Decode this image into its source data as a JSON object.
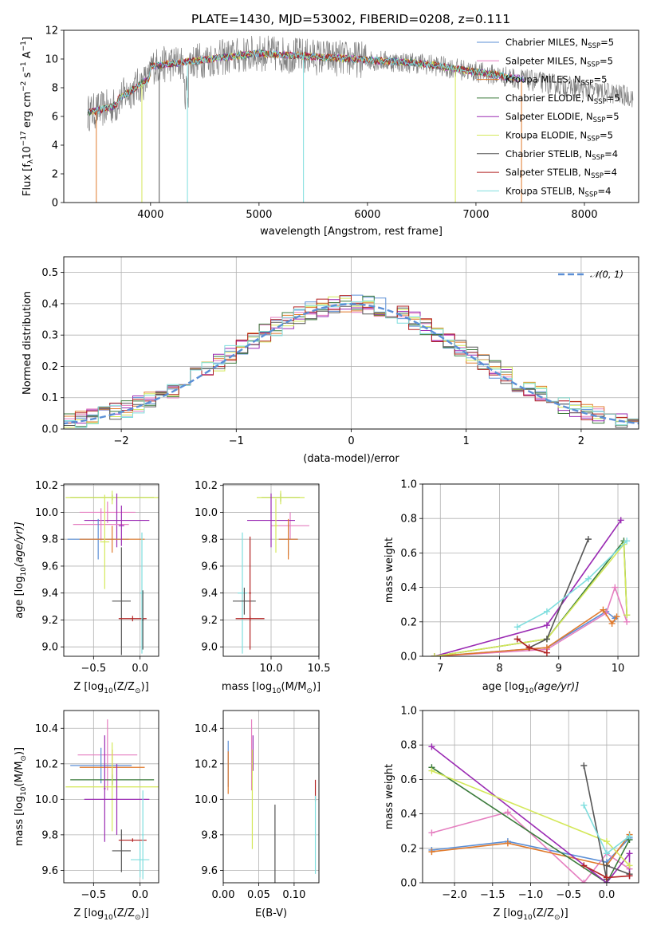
{
  "figure_title": "PLATE=1430, MJD=53002, FIBERID=0208, z=0.111",
  "colors": {
    "chabrier_miles": "#5b8fd6",
    "salpeter_miles": "#e57fc0",
    "kroupa_miles": "#e07a2c",
    "chabrier_elodie": "#3a7a3a",
    "salpeter_elodie": "#9a2ab3",
    "kroupa_elodie": "#d4e85a",
    "chabrier_stelib": "#555555",
    "salpeter_stelib": "#b22222",
    "kroupa_stelib": "#7fdede"
  },
  "chart_data": [
    {
      "id": "spectrum",
      "type": "line",
      "title": "PLATE=1430, MJD=53002, FIBERID=0208, z=0.111",
      "xlabel": "wavelength [Angstrom, rest frame]",
      "ylabel": "Flux [f",
      "xlim": [
        3200,
        8500
      ],
      "ylim": [
        0,
        12
      ],
      "xticks": [
        4000,
        5000,
        6000,
        7000,
        8000
      ],
      "yticks": [
        0,
        2,
        4,
        6,
        8,
        10,
        12
      ],
      "grid": false,
      "legend": "right",
      "series": [
        {
          "name": "Chabrier MILES, N",
          "nssp": "=5",
          "color": "#5b8fd6"
        },
        {
          "name": "Salpeter MILES, N",
          "nssp": "=5",
          "color": "#e57fc0"
        },
        {
          "name": "Kroupa MILES, N",
          "nssp": "=5",
          "color": "#e07a2c"
        },
        {
          "name": "Chabrier ELODIE, N",
          "nssp": "=5",
          "color": "#3a7a3a"
        },
        {
          "name": "Salpeter ELODIE, N",
          "nssp": "=5",
          "color": "#9a2ab3"
        },
        {
          "name": "Kroupa ELODIE, N",
          "nssp": "=5",
          "color": "#d4e85a"
        },
        {
          "name": "Chabrier STELIB, N",
          "nssp": "=4",
          "color": "#555555"
        },
        {
          "name": "Salpeter STELIB, N",
          "nssp": "=4",
          "color": "#b22222"
        },
        {
          "name": "Kroupa STELIB, N",
          "nssp": "=4",
          "color": "#7fdede"
        }
      ]
    },
    {
      "id": "residuals",
      "type": "line",
      "xlabel": "(data-model)/error",
      "ylabel": "Normed distribution",
      "xlim": [
        -2.5,
        2.5
      ],
      "ylim": [
        0,
        0.55
      ],
      "xticks": [
        -2,
        -1,
        0,
        1,
        2
      ],
      "xtick_labels": [
        "−2",
        "−1",
        "0",
        "1",
        "2"
      ],
      "yticks": [
        0.0,
        0.1,
        0.2,
        0.3,
        0.4,
        0.5
      ],
      "ytick_labels": [
        "0.0",
        "0.1",
        "0.2",
        "0.3",
        "0.4",
        "0.5"
      ],
      "grid": true,
      "legend": "top-right",
      "legend_label": "𝒩(0, 1)",
      "gaussian": {
        "mu": 0,
        "sigma": 1
      }
    },
    {
      "id": "age_vs_z",
      "type": "scatter",
      "xlabel": "Z [log",
      "ylabel": "age  [log",
      "xlim": [
        -0.82,
        0.2
      ],
      "ylim": [
        8.93,
        10.21
      ],
      "xticks": [
        -0.5,
        0.0
      ],
      "xtick_labels": [
        "−0.5",
        "0.0"
      ],
      "yticks": [
        9.0,
        9.2,
        9.4,
        9.6,
        9.8,
        10.0,
        10.2
      ],
      "ytick_labels": [
        "9.0",
        "9.2",
        "9.4",
        "9.6",
        "9.8",
        "10.0",
        "10.2"
      ],
      "grid": true,
      "points": [
        {
          "key": "chabrier_elodie",
          "x": -0.3,
          "y": 10.11,
          "xe": 0.45,
          "ye": 0.02
        },
        {
          "key": "kroupa_elodie",
          "x": -0.3,
          "y": 10.11,
          "xe": 0.5,
          "ye": 0.05
        },
        {
          "key": "salpeter_miles",
          "x": -0.35,
          "y": 10.0,
          "xe": 0.3,
          "ye": 0.08
        },
        {
          "key": "salpeter_elodie",
          "x": -0.25,
          "y": 9.94,
          "xe": 0.35,
          "ye": 0.2
        },
        {
          "key": "salpeter_miles",
          "x": -0.42,
          "y": 9.91,
          "xe": 0.3,
          "ye": 0.12
        },
        {
          "key": "chabrier_miles",
          "x": -0.45,
          "y": 9.8,
          "xe": 0.33,
          "ye": 0.15
        },
        {
          "key": "kroupa_miles",
          "x": -0.3,
          "y": 9.8,
          "xe": 0.35,
          "ye": 0.1
        },
        {
          "key": "kroupa_elodie",
          "x": -0.38,
          "y": 9.78,
          "xe": 0.05,
          "ye": 0.35
        },
        {
          "key": "salpeter_elodie",
          "x": -0.2,
          "y": 9.9,
          "xe": 0.03,
          "ye": 0.15
        },
        {
          "key": "chabrier_stelib",
          "x": -0.2,
          "y": 9.34,
          "xe": 0.1,
          "ye": 0.4
        },
        {
          "key": "salpeter_stelib",
          "x": -0.08,
          "y": 9.21,
          "xe": 0.15,
          "ye": 0.02
        },
        {
          "key": "kroupa_stelib",
          "x": 0.02,
          "y": 9.4,
          "xe": 0.02,
          "ye": 0.45
        },
        {
          "key": "chabrier_stelib",
          "x": 0.03,
          "y": 9.2,
          "xe": 0.01,
          "ye": 0.22
        }
      ]
    },
    {
      "id": "age_vs_mass",
      "type": "scatter",
      "xlabel": "mass [log",
      "ylabel": "",
      "xlim": [
        9.5,
        10.5
      ],
      "ylim": [
        8.93,
        10.21
      ],
      "xticks": [
        10.0,
        10.5
      ],
      "xtick_labels": [
        "10.0",
        "10.5"
      ],
      "yticks": [
        9.0,
        9.2,
        9.4,
        9.6,
        9.8,
        10.0,
        10.2
      ],
      "ytick_labels": [
        "9.0",
        "9.2",
        "9.4",
        "9.6",
        "9.8",
        "10.0",
        "10.2"
      ],
      "grid": true,
      "points": [
        {
          "key": "chabrier_elodie",
          "x": 10.1,
          "y": 10.11,
          "xe": 0.2,
          "ye": 0.03
        },
        {
          "key": "kroupa_elodie",
          "x": 10.1,
          "y": 10.11,
          "xe": 0.25,
          "ye": 0.05
        },
        {
          "key": "salpeter_miles",
          "x": 10.2,
          "y": 9.9,
          "xe": 0.2,
          "ye": 0.1
        },
        {
          "key": "salpeter_elodie",
          "x": 10.0,
          "y": 9.94,
          "xe": 0.25,
          "ye": 0.2
        },
        {
          "key": "chabrier_miles",
          "x": 10.18,
          "y": 9.8,
          "xe": 0.1,
          "ye": 0.12
        },
        {
          "key": "kroupa_miles",
          "x": 10.18,
          "y": 9.8,
          "xe": 0.1,
          "ye": 0.15
        },
        {
          "key": "kroupa_elodie",
          "x": 10.05,
          "y": 9.9,
          "xe": 0.02,
          "ye": 0.2
        },
        {
          "key": "kroupa_stelib",
          "x": 9.7,
          "y": 9.4,
          "xe": 0.05,
          "ye": 0.45
        },
        {
          "key": "chabrier_stelib",
          "x": 9.72,
          "y": 9.34,
          "xe": 0.12,
          "ye": 0.1
        },
        {
          "key": "salpeter_stelib",
          "x": 9.78,
          "y": 9.21,
          "xe": 0.15,
          "ye": 0.02
        },
        {
          "key": "salpeter_stelib",
          "x": 9.78,
          "y": 9.4,
          "xe": 0.01,
          "ye": 0.42
        }
      ]
    },
    {
      "id": "weight_vs_age",
      "type": "line",
      "xlabel": "age  [log",
      "ylabel": "mass weight",
      "xlim": [
        6.7,
        10.35
      ],
      "ylim": [
        0,
        1.0
      ],
      "xticks": [
        7,
        8,
        9,
        10
      ],
      "xtick_labels": [
        "7",
        "8",
        "9",
        "10"
      ],
      "yticks": [
        0.0,
        0.2,
        0.4,
        0.6,
        0.8,
        1.0
      ],
      "ytick_labels": [
        "0.0",
        "0.2",
        "0.4",
        "0.6",
        "0.8",
        "1.0"
      ],
      "grid": true,
      "series": [
        {
          "key": "chabrier_miles",
          "x": [
            6.9,
            8.8,
            9.8,
            9.95
          ],
          "y": [
            0.0,
            0.05,
            0.26,
            0.22
          ]
        },
        {
          "key": "salpeter_miles",
          "x": [
            6.9,
            8.8,
            9.8,
            9.95,
            10.15
          ],
          "y": [
            0.0,
            0.04,
            0.25,
            0.4,
            0.2
          ]
        },
        {
          "key": "kroupa_miles",
          "x": [
            6.9,
            8.8,
            9.75,
            9.9,
            9.98
          ],
          "y": [
            0.0,
            0.05,
            0.27,
            0.19,
            0.23
          ]
        },
        {
          "key": "chabrier_elodie",
          "x": [
            6.9,
            8.8,
            10.1,
            10.15
          ],
          "y": [
            0.0,
            0.1,
            0.67,
            0.24
          ]
        },
        {
          "key": "salpeter_elodie",
          "x": [
            6.9,
            8.8,
            10.05
          ],
          "y": [
            0.0,
            0.18,
            0.79
          ]
        },
        {
          "key": "kroupa_elodie",
          "x": [
            6.9,
            8.8,
            10.1,
            10.15
          ],
          "y": [
            0.0,
            0.1,
            0.65,
            0.24
          ]
        },
        {
          "key": "chabrier_stelib",
          "x": [
            8.3,
            8.5,
            8.8,
            9.5
          ],
          "y": [
            0.1,
            0.05,
            0.1,
            0.68
          ]
        },
        {
          "key": "salpeter_stelib",
          "x": [
            8.3,
            8.5,
            8.8
          ],
          "y": [
            0.1,
            0.05,
            0.02
          ]
        },
        {
          "key": "kroupa_stelib",
          "x": [
            8.3,
            8.8,
            9.5,
            10.15
          ],
          "y": [
            0.17,
            0.26,
            0.45,
            0.67
          ]
        }
      ]
    },
    {
      "id": "mass_vs_z",
      "type": "scatter",
      "xlabel": "Z [log",
      "ylabel": "mass [log",
      "xlim": [
        -0.82,
        0.2
      ],
      "ylim": [
        9.53,
        10.5
      ],
      "xticks": [
        -0.5,
        0.0
      ],
      "xtick_labels": [
        "−0.5",
        "0.0"
      ],
      "yticks": [
        9.6,
        9.8,
        10.0,
        10.2,
        10.4
      ],
      "ytick_labels": [
        "9.6",
        "9.8",
        "10.0",
        "10.2",
        "10.4"
      ],
      "grid": true,
      "points": [
        {
          "key": "salpeter_miles",
          "x": -0.35,
          "y": 10.25,
          "xe": 0.32,
          "ye": 0.2
        },
        {
          "key": "chabrier_miles",
          "x": -0.42,
          "y": 10.19,
          "xe": 0.33,
          "ye": 0.1
        },
        {
          "key": "kroupa_miles",
          "x": -0.3,
          "y": 10.18,
          "xe": 0.35,
          "ye": 0.1
        },
        {
          "key": "chabrier_elodie",
          "x": -0.3,
          "y": 10.11,
          "xe": 0.45,
          "ye": 0.03
        },
        {
          "key": "kroupa_elodie",
          "x": -0.3,
          "y": 10.07,
          "xe": 0.5,
          "ye": 0.25
        },
        {
          "key": "salpeter_elodie",
          "x": -0.25,
          "y": 10.0,
          "xe": 0.35,
          "ye": 0.2
        },
        {
          "key": "salpeter_elodie",
          "x": -0.38,
          "y": 10.06,
          "xe": 0.01,
          "ye": 0.3
        },
        {
          "key": "chabrier_stelib",
          "x": -0.2,
          "y": 9.71,
          "xe": 0.1,
          "ye": 0.12
        },
        {
          "key": "salpeter_stelib",
          "x": -0.08,
          "y": 9.77,
          "xe": 0.15,
          "ye": 0.01
        },
        {
          "key": "kroupa_stelib",
          "x": 0.0,
          "y": 9.66,
          "xe": 0.1,
          "ye": 0.1
        },
        {
          "key": "kroupa_stelib",
          "x": 0.03,
          "y": 9.8,
          "xe": 0.01,
          "ye": 0.25
        }
      ]
    },
    {
      "id": "mass_vs_ebv",
      "type": "scatter",
      "xlabel": "E(B-V)",
      "ylabel": "",
      "xlim": [
        0.0,
        0.135
      ],
      "ylim": [
        9.53,
        10.5
      ],
      "xticks": [
        0.0,
        0.05,
        0.1
      ],
      "xtick_labels": [
        "0.00",
        "0.05",
        "0.10"
      ],
      "yticks": [
        9.6,
        9.8,
        10.0,
        10.2,
        10.4
      ],
      "ytick_labels": [
        "9.6",
        "9.8",
        "10.0",
        "10.2",
        "10.4"
      ],
      "grid": true,
      "points": [
        {
          "key": "chabrier_miles",
          "x": 0.007,
          "y": 10.2,
          "xe": 0.0,
          "ye": 0.13
        },
        {
          "key": "kroupa_miles",
          "x": 0.007,
          "y": 10.15,
          "xe": 0.0,
          "ye": 0.12
        },
        {
          "key": "salpeter_miles",
          "x": 0.04,
          "y": 10.25,
          "xe": 0.0,
          "ye": 0.2
        },
        {
          "key": "salpeter_elodie",
          "x": 0.042,
          "y": 10.26,
          "xe": 0.0,
          "ye": 0.1
        },
        {
          "key": "kroupa_elodie",
          "x": 0.041,
          "y": 10.0,
          "xe": 0.0,
          "ye": 0.28
        },
        {
          "key": "chabrier_stelib",
          "x": 0.073,
          "y": 9.71,
          "xe": 0.0,
          "ye": 0.26
        },
        {
          "key": "salpeter_stelib",
          "x": 0.13,
          "y": 10.05,
          "xe": 0.0,
          "ye": 0.06
        },
        {
          "key": "kroupa_stelib",
          "x": 0.13,
          "y": 9.8,
          "xe": 0.0,
          "ye": 0.22
        }
      ]
    },
    {
      "id": "weight_vs_z",
      "type": "line",
      "xlabel": "Z [log",
      "ylabel": "mass weight",
      "xlim": [
        -2.42,
        0.42
      ],
      "ylim": [
        0,
        1.0
      ],
      "xticks": [
        -2.0,
        -1.5,
        -1.0,
        -0.5,
        0.0
      ],
      "xtick_labels": [
        "−2.0",
        "−1.5",
        "−1.0",
        "−0.5",
        "0.0"
      ],
      "yticks": [
        0.0,
        0.2,
        0.4,
        0.6,
        0.8,
        1.0
      ],
      "ytick_labels": [
        "0.0",
        "0.2",
        "0.4",
        "0.6",
        "0.8",
        "1.0"
      ],
      "grid": true,
      "series": [
        {
          "key": "chabrier_miles",
          "x": [
            -2.3,
            -1.3,
            0.0,
            0.3
          ],
          "y": [
            0.19,
            0.24,
            0.12,
            0.26
          ]
        },
        {
          "key": "salpeter_miles",
          "x": [
            -2.3,
            -1.3,
            -0.3,
            0.0,
            0.3
          ],
          "y": [
            0.29,
            0.41,
            0.0,
            0.17,
            0.08
          ]
        },
        {
          "key": "kroupa_miles",
          "x": [
            -2.3,
            -1.3,
            0.0,
            0.3
          ],
          "y": [
            0.18,
            0.23,
            0.1,
            0.28
          ]
        },
        {
          "key": "chabrier_elodie",
          "x": [
            -2.3,
            0.0,
            0.3
          ],
          "y": [
            0.67,
            0.0,
            0.25
          ]
        },
        {
          "key": "salpeter_elodie",
          "x": [
            -2.3,
            0.0,
            0.3,
            0.3
          ],
          "y": [
            0.79,
            0.0,
            0.17,
            0.04
          ]
        },
        {
          "key": "kroupa_elodie",
          "x": [
            -2.3,
            0.0,
            0.3
          ],
          "y": [
            0.65,
            0.24,
            0.1
          ]
        },
        {
          "key": "chabrier_stelib",
          "x": [
            -0.3,
            0.0,
            0.0,
            0.3
          ],
          "y": [
            0.68,
            0.02,
            0.1,
            0.05
          ]
        },
        {
          "key": "salpeter_stelib",
          "x": [
            -0.3,
            0.0,
            0.3
          ],
          "y": [
            0.1,
            0.03,
            0.04
          ]
        },
        {
          "key": "kroupa_stelib",
          "x": [
            -0.3,
            0.0,
            0.3
          ],
          "y": [
            0.45,
            0.17,
            0.27
          ]
        }
      ]
    }
  ]
}
